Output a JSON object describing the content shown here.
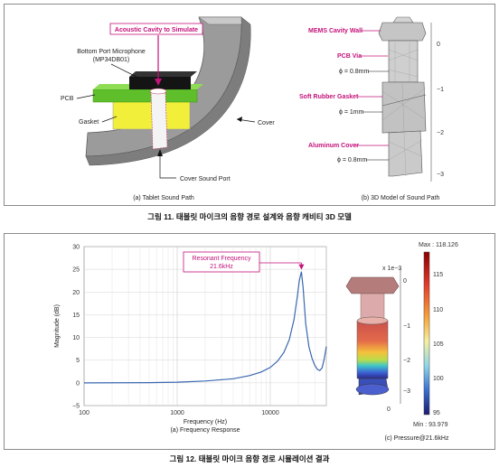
{
  "figure11": {
    "caption": "그림 11. 태블릿 마이크의 음향 경로 설계와 음향 캐비티 3D 모델",
    "left_panel": {
      "subcaption": "(a) Tablet Sound Path",
      "labels": {
        "acoustic_cavity": "Acoustic Cavity to Simulate",
        "mic_line1": "Bottom Port Microphone",
        "mic_line2": "(MP34DB01)",
        "pcb": "PCB",
        "gasket": "Gasket",
        "cover": "Cover",
        "cover_sound_port": "Cover Sound Port"
      }
    },
    "right_panel": {
      "subcaption": "(b) 3D Model of Sound Path",
      "labels": {
        "mems_cavity_wall": "MEMS Cavity Wall",
        "pcb_via": "PCB Via",
        "pcb_via_dim": "ϕ = 0.8mm",
        "soft_rubber_gasket": "Soft Rubber Gasket",
        "gasket_dim": "ϕ = 1mm",
        "aluminum_cover": "Aluminum Cover",
        "cover_dim": "ϕ = 0.8mm"
      },
      "axis_ticks": [
        "0",
        "−1",
        "−2",
        "−3"
      ]
    }
  },
  "figure12": {
    "caption": "그림 12. 태블릿 마이크 음향 경로 시뮬레이션 결과",
    "left_panel": {
      "subcaption": "(a) Frequency Response",
      "annotation_line1": "Resonant Frequency",
      "annotation_line2": "21.6kHz"
    },
    "right_panel": {
      "subcaption": "(c) Pressure@21.6kHz",
      "max_label": "Max : 118.126",
      "min_label": "Min : 93.979",
      "scale_label": "x 1e−3",
      "colorbar_ticks": [
        "115",
        "110",
        "105",
        "100",
        "95"
      ],
      "axis_ticks": [
        "0",
        "−1",
        "−2",
        "−3"
      ],
      "axis_zero": "0"
    }
  },
  "chart_data": {
    "type": "line",
    "title": "",
    "xlabel": "Frequency (Hz)",
    "ylabel": "Magnitude (dB)",
    "xscale": "log",
    "xlim": [
      100,
      40000
    ],
    "ylim": [
      -5,
      30
    ],
    "xticks": [
      "100",
      "1000",
      "10000"
    ],
    "yticks": [
      "−5",
      "0",
      "5",
      "10",
      "15",
      "20",
      "25",
      "30"
    ],
    "grid": true,
    "series": [
      {
        "color": "#3a67b0",
        "x": [
          100,
          500,
          1000,
          2000,
          4000,
          6000,
          8000,
          10000,
          12000,
          14000,
          16000,
          18000,
          19500,
          20500,
          21600,
          22500,
          24000,
          26000,
          28000,
          30000,
          32000,
          34000,
          36000,
          38000,
          40000
        ],
        "y": [
          0,
          0.05,
          0.15,
          0.4,
          0.9,
          1.6,
          2.4,
          3.4,
          4.8,
          6.7,
          9.5,
          14,
          19,
          22.5,
          24.5,
          21,
          13,
          8,
          5.5,
          3.9,
          3,
          2.7,
          3.3,
          5.3,
          8
        ]
      }
    ],
    "annotations": [
      {
        "text": "Resonant Frequency 21.6kHz",
        "x": 21600,
        "y": 24.5
      }
    ]
  }
}
